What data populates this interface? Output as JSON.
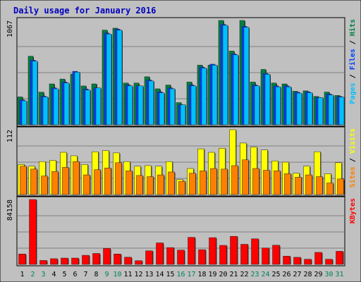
{
  "chart_data": {
    "type": "bar",
    "title": "Daily usage for January 2016",
    "categories": [
      "1",
      "2",
      "3",
      "4",
      "5",
      "6",
      "7",
      "8",
      "9",
      "10",
      "11",
      "12",
      "13",
      "14",
      "15",
      "16",
      "17",
      "18",
      "19",
      "20",
      "21",
      "22",
      "23",
      "24",
      "25",
      "26",
      "27",
      "28",
      "29",
      "30",
      "31"
    ],
    "weekend_days": [
      "2",
      "3",
      "9",
      "10",
      "16",
      "17",
      "23",
      "24",
      "30",
      "31"
    ],
    "colors": {
      "background": "#c0c0c0",
      "title": "#0000c0",
      "hits": "#008040",
      "files": "#0040ff",
      "pages": "#00c0ff",
      "visits": "#ffff00",
      "sites": "#ff8000",
      "kbytes": "#ff0000",
      "weekday_label": "#000000",
      "weekend_label": "#00805c"
    },
    "panels": [
      {
        "id": "hits-files-pages",
        "max_label": "1067",
        "ymax": 1067,
        "legend": [
          {
            "label": "Pages",
            "color": "#00c0ff"
          },
          {
            "label": " / ",
            "color": "#000000"
          },
          {
            "label": "Files",
            "color": "#0040ff"
          },
          {
            "label": " / ",
            "color": "#000000"
          },
          {
            "label": "Hits",
            "color": "#008040"
          }
        ],
        "series": [
          {
            "name": "Hits",
            "color": "#008040",
            "values": [
              285,
              701,
              334,
              418,
              468,
              518,
              397,
              418,
              968,
              988,
              427,
              427,
              491,
              368,
              407,
              227,
              437,
              610,
              610,
              1067,
              754,
              1067,
              437,
              566,
              427,
              418,
              343,
              347,
              290,
              335,
              300
            ]
          },
          {
            "name": "Files",
            "color": "#0040ff",
            "values": [
              254,
              661,
              294,
              378,
              437,
              547,
              366,
              378,
              938,
              978,
              407,
              398,
              458,
              338,
              377,
              205,
              408,
              590,
              620,
              1027,
              725,
              1007,
              407,
              526,
              398,
              398,
              334,
              338,
              280,
              315,
              290
            ]
          },
          {
            "name": "Pages",
            "color": "#00c0ff",
            "values": [
              245,
              651,
              285,
              368,
              427,
              538,
              356,
              378,
              928,
              968,
              398,
              398,
              448,
              327,
              368,
              205,
              398,
              580,
              610,
              1017,
              715,
              997,
              398,
              516,
              388,
              388,
              324,
              328,
              278,
              305,
              283
            ]
          }
        ]
      },
      {
        "id": "visits-sites",
        "max_label": "112",
        "ymax": 112,
        "legend": [
          {
            "label": "Sites",
            "color": "#ff8000"
          },
          {
            "label": " / ",
            "color": "#000000"
          },
          {
            "label": "Visits",
            "color": "#ffff00"
          }
        ],
        "series": [
          {
            "name": "Visits",
            "color": "#ffff00",
            "values": [
              52,
              49,
              57,
              59,
              73,
              67,
              52,
              74,
              76,
              72,
              57,
              49,
              50,
              49,
              57,
              26,
              45,
              79,
              73,
              80,
              112,
              89,
              82,
              77,
              58,
              56,
              37,
              49,
              74,
              36,
              55
            ]
          },
          {
            "name": "Sites",
            "color": "#ff8000",
            "values": [
              49,
              44,
              32,
              40,
              47,
              57,
              34,
              43,
              46,
              55,
              41,
              33,
              31,
              34,
              39,
              23,
              37,
              41,
              45,
              44,
              50,
              60,
              45,
              42,
              41,
              36,
              30,
              34,
              31,
              20,
              27
            ]
          }
        ]
      },
      {
        "id": "kbytes",
        "max_label": "84158",
        "ymax": 84158,
        "legend": [
          {
            "label": "KBytes",
            "color": "#ff0000"
          }
        ],
        "series": [
          {
            "name": "KBytes",
            "color": "#ff0000",
            "values": [
              13500,
              84158,
              5100,
              7400,
              8200,
              8200,
              11800,
              14200,
              20700,
              13500,
              9300,
              4800,
              17600,
              27900,
              21800,
              18600,
              35100,
              19100,
              34700,
              24700,
              36400,
              26100,
              33200,
              21300,
              24900,
              10700,
              9200,
              6700,
              15600,
              6700,
              17000
            ]
          }
        ]
      }
    ]
  }
}
